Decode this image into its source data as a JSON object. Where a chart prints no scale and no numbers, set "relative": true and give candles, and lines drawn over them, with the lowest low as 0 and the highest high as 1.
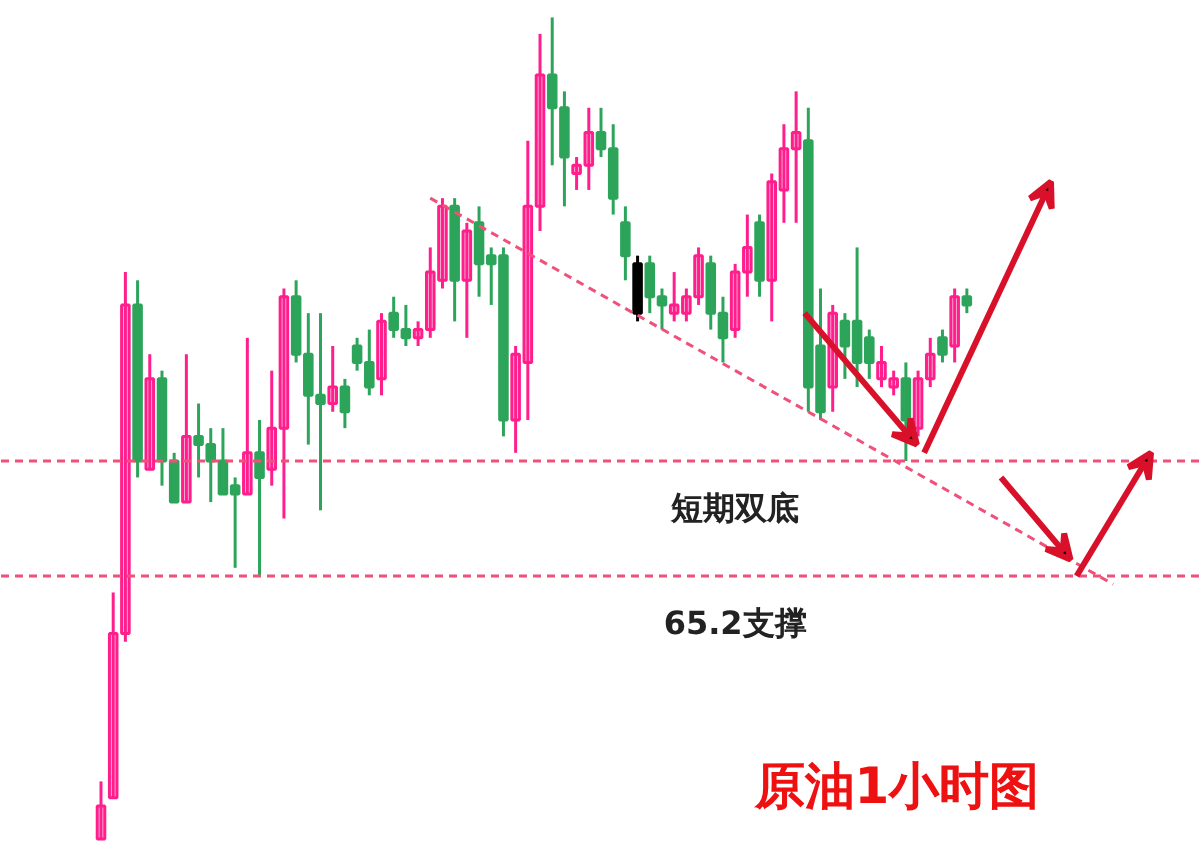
{
  "chart_data": {
    "type": "candlestick",
    "title": "原油1小时图",
    "relative": true,
    "tick_labels": false,
    "grid": false,
    "categories": [
      null,
      null,
      null,
      null,
      null,
      null,
      null,
      null,
      null,
      null,
      null,
      null,
      null,
      null,
      null,
      null,
      null,
      null,
      null,
      null,
      null,
      null,
      null,
      null,
      null,
      null,
      null,
      null,
      null,
      null,
      null,
      null,
      null,
      null,
      null,
      null,
      null,
      null,
      null,
      null,
      null,
      null,
      null,
      null,
      null,
      null,
      null,
      null,
      null,
      null,
      null,
      null,
      null,
      null,
      null,
      null,
      null,
      null,
      null,
      null,
      null,
      null,
      null,
      null,
      null,
      null,
      null,
      null,
      null,
      null,
      null,
      null,
      null,
      null,
      null,
      null,
      null,
      null,
      null,
      null,
      null,
      null,
      null,
      null,
      null,
      null,
      null,
      null,
      null,
      null,
      null
    ],
    "ohlc": [
      [
        0,
        0.07,
        0,
        0.04
      ],
      [
        0.05,
        0.3,
        0.05,
        0.25
      ],
      [
        0.25,
        0.69,
        0.24,
        0.65
      ],
      [
        0.65,
        0.68,
        0.44,
        0.46
      ],
      [
        0.45,
        0.59,
        0.45,
        0.56
      ],
      [
        0.56,
        0.57,
        0.43,
        0.46
      ],
      [
        0.46,
        0.47,
        0.41,
        0.41
      ],
      [
        0.41,
        0.59,
        0.41,
        0.49
      ],
      [
        0.49,
        0.53,
        0.44,
        0.48
      ],
      [
        0.48,
        0.5,
        0.41,
        0.46
      ],
      [
        0.46,
        0.5,
        0.42,
        0.42
      ],
      [
        0.43,
        0.44,
        0.33,
        0.42
      ],
      [
        0.42,
        0.61,
        0.42,
        0.47
      ],
      [
        0.47,
        0.51,
        0.32,
        0.44
      ],
      [
        0.45,
        0.57,
        0.43,
        0.5
      ],
      [
        0.5,
        0.67,
        0.39,
        0.66
      ],
      [
        0.66,
        0.68,
        0.58,
        0.59
      ],
      [
        0.59,
        0.64,
        0.48,
        0.54
      ],
      [
        0.54,
        0.64,
        0.4,
        0.53
      ],
      [
        0.53,
        0.6,
        0.52,
        0.55
      ],
      [
        0.55,
        0.56,
        0.5,
        0.52
      ],
      [
        0.6,
        0.61,
        0.57,
        0.58
      ],
      [
        0.58,
        0.62,
        0.54,
        0.55
      ],
      [
        0.56,
        0.64,
        0.54,
        0.63
      ],
      [
        0.64,
        0.66,
        0.61,
        0.62
      ],
      [
        0.62,
        0.65,
        0.6,
        0.61
      ],
      [
        0.61,
        0.63,
        0.6,
        0.62
      ],
      [
        0.62,
        0.72,
        0.61,
        0.69
      ],
      [
        0.68,
        0.78,
        0.67,
        0.77
      ],
      [
        0.77,
        0.78,
        0.63,
        0.68
      ],
      [
        0.68,
        0.75,
        0.61,
        0.74
      ],
      [
        0.75,
        0.77,
        0.66,
        0.7
      ],
      [
        0.71,
        0.72,
        0.65,
        0.7
      ],
      [
        0.71,
        0.72,
        0.49,
        0.51
      ],
      [
        0.51,
        0.6,
        0.47,
        0.59
      ],
      [
        0.58,
        0.85,
        0.51,
        0.77
      ],
      [
        0.77,
        0.98,
        0.74,
        0.93
      ],
      [
        0.93,
        1,
        0.82,
        0.89
      ],
      [
        0.89,
        0.91,
        0.77,
        0.83
      ],
      [
        0.81,
        0.83,
        0.79,
        0.82
      ],
      [
        0.82,
        0.89,
        0.79,
        0.86
      ],
      [
        0.86,
        0.89,
        0.83,
        0.84
      ],
      [
        0.84,
        0.87,
        0.76,
        0.78
      ],
      [
        0.75,
        0.77,
        0.68,
        0.71
      ],
      [
        0.7,
        0.71,
        0.63,
        0.64
      ],
      [
        0.7,
        0.71,
        0.64,
        0.66
      ],
      [
        0.66,
        0.67,
        0.62,
        0.65
      ],
      [
        0.64,
        0.69,
        0.63,
        0.65
      ],
      [
        0.64,
        0.67,
        0.63,
        0.66
      ],
      [
        0.66,
        0.72,
        0.65,
        0.71
      ],
      [
        0.7,
        0.71,
        0.62,
        0.64
      ],
      [
        0.64,
        0.66,
        0.58,
        0.61
      ],
      [
        0.62,
        0.7,
        0.61,
        0.69
      ],
      [
        0.69,
        0.76,
        0.66,
        0.72
      ],
      [
        0.75,
        0.76,
        0.66,
        0.68
      ],
      [
        0.68,
        0.81,
        0.63,
        0.8
      ],
      [
        0.79,
        0.87,
        0.75,
        0.84
      ],
      [
        0.84,
        0.91,
        0.75,
        0.86
      ],
      [
        0.85,
        0.89,
        0.52,
        0.55
      ],
      [
        0.6,
        0.67,
        0.51,
        0.52
      ],
      [
        0.55,
        0.65,
        0.52,
        0.64
      ],
      [
        0.63,
        0.64,
        0.56,
        0.6
      ],
      [
        0.63,
        0.72,
        0.55,
        0.58
      ],
      [
        0.61,
        0.62,
        0.56,
        0.58
      ],
      [
        0.56,
        0.6,
        0.55,
        0.58
      ],
      [
        0.55,
        0.57,
        0.54,
        0.56
      ],
      [
        0.56,
        0.58,
        0.46,
        0.51
      ],
      [
        0.5,
        0.57,
        0.49,
        0.56
      ],
      [
        0.56,
        0.61,
        0.55,
        0.59
      ],
      [
        0.61,
        0.62,
        0.58,
        0.59
      ],
      [
        0.6,
        0.67,
        0.58,
        0.66
      ],
      [
        0.66,
        0.67,
        0.64,
        0.65
      ],
      null,
      null,
      null,
      null,
      null,
      null,
      null,
      null,
      null,
      null,
      null,
      null,
      null,
      null,
      null,
      null,
      null,
      null,
      null
    ],
    "colors": [
      "#ff1e8c",
      "#ff1e8c",
      "#ff1e8c",
      "#2ca45a",
      "#ff1e8c",
      "#2ca45a",
      "#2ca45a",
      "#ff1e8c",
      "#2ca45a",
      "#2ca45a",
      "#2ca45a",
      "#2ca45a",
      "#ff1e8c",
      "#2ca45a",
      "#ff1e8c",
      "#ff1e8c",
      "#2ca45a",
      "#2ca45a",
      "#2ca45a",
      "#ff1e8c",
      "#2ca45a",
      "#2ca45a",
      "#2ca45a",
      "#ff1e8c",
      "#2ca45a",
      "#2ca45a",
      "#ff1e8c",
      "#ff1e8c",
      "#ff1e8c",
      "#2ca45a",
      "#ff1e8c",
      "#2ca45a",
      "#2ca45a",
      "#2ca45a",
      "#ff1e8c",
      "#ff1e8c",
      "#ff1e8c",
      "#2ca45a",
      "#2ca45a",
      "#ff1e8c",
      "#ff1e8c",
      "#2ca45a",
      "#2ca45a",
      "#2ca45a",
      "#000000",
      "#2ca45a",
      "#2ca45a",
      "#ff1e8c",
      "#ff1e8c",
      "#ff1e8c",
      "#2ca45a",
      "#2ca45a",
      "#ff1e8c",
      "#ff1e8c",
      "#2ca45a",
      "#ff1e8c",
      "#ff1e8c",
      "#ff1e8c",
      "#2ca45a",
      "#2ca45a",
      "#ff1e8c",
      "#2ca45a",
      "#2ca45a",
      "#2ca45a",
      "#ff1e8c",
      "#ff1e8c",
      "#2ca45a",
      "#ff1e8c",
      "#ff1e8c",
      "#2ca45a",
      "#ff1e8c",
      "#2ca45a",
      null,
      null,
      null,
      null,
      null,
      null,
      null,
      null,
      null,
      null,
      null,
      null,
      null,
      null,
      null,
      null,
      null,
      null,
      null
    ],
    "series": [
      {
        "type": "line",
        "values": [
          null,
          null,
          null,
          null,
          null,
          null,
          null,
          null,
          null,
          null,
          null,
          null,
          null,
          null,
          null,
          null,
          null,
          null,
          null,
          null,
          null,
          null,
          null,
          null,
          null,
          null,
          null,
          0.78,
          null,
          null,
          null,
          null,
          null,
          null,
          null,
          null,
          null,
          null,
          null,
          null,
          null,
          null,
          null,
          null,
          null,
          null,
          null,
          null,
          null,
          null,
          null,
          null,
          null,
          null,
          null,
          null,
          null,
          null,
          null,
          null,
          null,
          null,
          null,
          null,
          null,
          null,
          null,
          null,
          null,
          null,
          null,
          null,
          null,
          null,
          null,
          null,
          null,
          null,
          null,
          null,
          null,
          null,
          null,
          0.31,
          null,
          null,
          null,
          null,
          null,
          null,
          null
        ],
        "color": "#f0507a",
        "line_style": "dashed"
      }
    ],
    "ref_lines": [
      {
        "axis": "y",
        "value": 0.46,
        "label": "短期双底",
        "color": "#f0507a",
        "line_style": "dashed"
      },
      {
        "axis": "y",
        "value": 0.32,
        "label": "65.2支撑",
        "color": "#f0507a",
        "line_style": "dashed"
      }
    ]
  }
}
